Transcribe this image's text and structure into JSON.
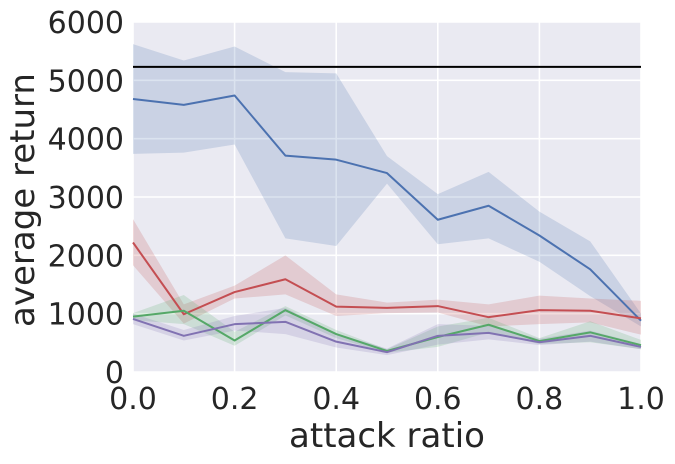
{
  "chart_data": {
    "type": "line",
    "xlabel": "attack ratio",
    "ylabel": "average return",
    "xlim": [
      0.0,
      1.0
    ],
    "ylim": [
      0,
      6000
    ],
    "x_ticks": [
      "0.0",
      "0.2",
      "0.4",
      "0.6",
      "0.8",
      "1.0"
    ],
    "y_ticks": [
      "0",
      "1000",
      "2000",
      "3000",
      "4000",
      "5000",
      "6000"
    ],
    "grid": true,
    "background": "#eaeaf2",
    "grid_color": "#ffffff",
    "x": [
      0.0,
      0.1,
      0.2,
      0.3,
      0.4,
      0.5,
      0.6,
      0.7,
      0.8,
      0.9,
      1.0
    ],
    "reference_line": {
      "y": 5230,
      "color": "#000000"
    },
    "series": [
      {
        "color": "#4c72b0",
        "values": [
          4680,
          4580,
          4740,
          3710,
          3640,
          3410,
          2610,
          2850,
          2340,
          1760,
          880
        ],
        "band_upper": [
          5620,
          5340,
          5580,
          5140,
          5120,
          3700,
          3050,
          3430,
          2750,
          2240,
          1000
        ],
        "band_lower": [
          3740,
          3760,
          3900,
          2290,
          2160,
          3230,
          2190,
          2290,
          1890,
          1300,
          780
        ]
      },
      {
        "color": "#c44e52",
        "values": [
          2220,
          990,
          1370,
          1590,
          1120,
          1100,
          1130,
          940,
          1060,
          1050,
          920
        ],
        "band_upper": [
          2620,
          1160,
          1480,
          2000,
          1330,
          1190,
          1240,
          1160,
          1310,
          1260,
          1220
        ],
        "band_lower": [
          1830,
          830,
          1260,
          1330,
          960,
          1010,
          1020,
          780,
          820,
          850,
          640
        ]
      },
      {
        "color": "#55a868",
        "values": [
          950,
          1050,
          540,
          1060,
          650,
          360,
          600,
          810,
          530,
          680,
          460
        ],
        "band_upper": [
          1010,
          1320,
          690,
          1130,
          720,
          390,
          780,
          930,
          580,
          870,
          550
        ],
        "band_lower": [
          890,
          820,
          450,
          970,
          580,
          330,
          430,
          680,
          480,
          510,
          390
        ]
      },
      {
        "color": "#8172b2",
        "values": [
          910,
          620,
          820,
          860,
          520,
          340,
          620,
          670,
          510,
          620,
          430
        ],
        "band_upper": [
          1000,
          720,
          960,
          1100,
          660,
          400,
          820,
          790,
          570,
          710,
          480
        ],
        "band_lower": [
          820,
          540,
          710,
          650,
          420,
          290,
          470,
          560,
          460,
          520,
          390
        ]
      }
    ]
  }
}
